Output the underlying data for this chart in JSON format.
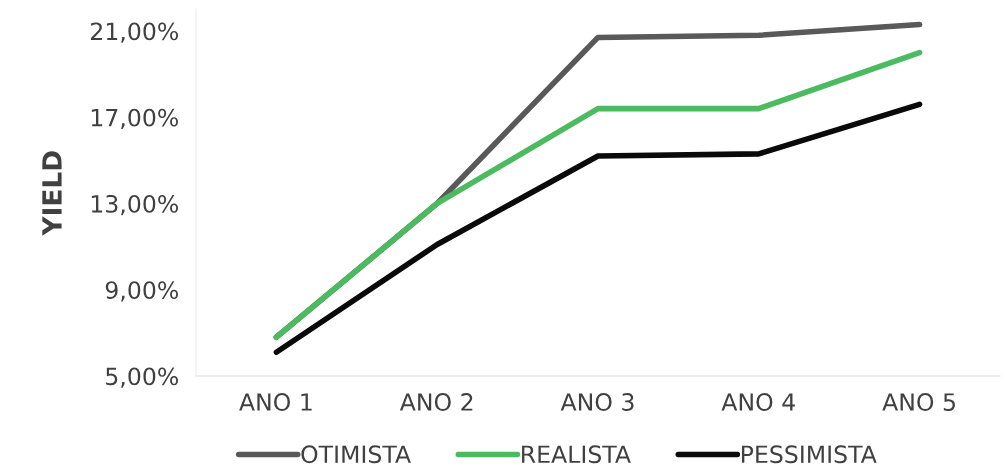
{
  "chart_data": {
    "type": "line",
    "ylabel": "YIELD",
    "categories": [
      "ANO 1",
      "ANO 2",
      "ANO 3",
      "ANO 4",
      "ANO 5"
    ],
    "series": [
      {
        "name": "OTIMISTA",
        "color": "#595959",
        "values": [
          6.8,
          13.0,
          20.7,
          20.8,
          21.3
        ]
      },
      {
        "name": "REALISTA",
        "color": "#4cbb5f",
        "values": [
          6.8,
          13.0,
          17.4,
          17.4,
          20.0
        ]
      },
      {
        "name": "PESSIMISTA",
        "color": "#0a0a0a",
        "values": [
          6.1,
          11.1,
          15.2,
          15.3,
          17.6
        ]
      }
    ],
    "ylim": [
      5,
      22
    ],
    "yticks": [
      {
        "value": 5,
        "label": "5,00%"
      },
      {
        "value": 9,
        "label": "9,00%"
      },
      {
        "value": 13,
        "label": "13,00%"
      },
      {
        "value": 17,
        "label": "17,00%"
      },
      {
        "value": 21,
        "label": "21,00%"
      }
    ],
    "legend": "bottom",
    "grid": false,
    "marker": "none",
    "line_style": "solid"
  }
}
